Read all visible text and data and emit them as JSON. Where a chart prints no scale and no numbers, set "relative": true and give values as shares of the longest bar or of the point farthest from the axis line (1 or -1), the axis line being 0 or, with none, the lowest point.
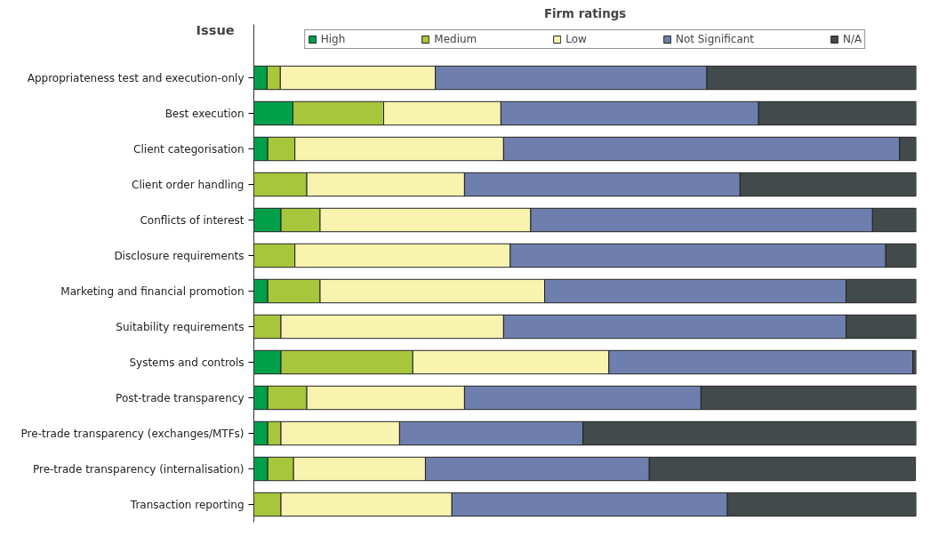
{
  "chart_data": {
    "type": "bar",
    "orientation": "horizontal",
    "stacked": true,
    "relative": true,
    "title": "Firm ratings",
    "ylabel": "Issue",
    "legend": "top",
    "grid": false,
    "categories": [
      "Appropriateness test and execution-only",
      "Best execution",
      "Client categorisation",
      "Client order handling",
      "Conflicts of interest",
      "Disclosure requirements",
      "Marketing and financial promotion",
      "Suitability requirements",
      "Systems and controls",
      "Post-trade transparency",
      "Pre-trade transparency (exchanges/MTFs)",
      "Pre-trade transparency (internalisation)",
      "Transaction reporting"
    ],
    "series": [
      {
        "name": "High",
        "color": "#00a04b",
        "values": [
          0.02,
          0.059,
          0.021,
          0,
          0.041,
          0,
          0.021,
          0,
          0.041,
          0.021,
          0.021,
          0.021,
          0
        ]
      },
      {
        "name": "Medium",
        "color": "#a8c63c",
        "values": [
          0.02,
          0.137,
          0.041,
          0.08,
          0.059,
          0.062,
          0.079,
          0.041,
          0.199,
          0.059,
          0.02,
          0.039,
          0.041
        ]
      },
      {
        "name": "Low",
        "color": "#f8f4b0",
        "values": [
          0.234,
          0.177,
          0.315,
          0.238,
          0.318,
          0.325,
          0.339,
          0.336,
          0.296,
          0.238,
          0.179,
          0.199,
          0.258
        ]
      },
      {
        "name": "Not Significant",
        "color": "#6e7fad",
        "values": [
          0.41,
          0.389,
          0.598,
          0.416,
          0.516,
          0.567,
          0.455,
          0.517,
          0.459,
          0.357,
          0.277,
          0.338,
          0.416
        ]
      },
      {
        "name": "N/A",
        "color": "#424a4b",
        "values": [
          0.316,
          0.238,
          0.025,
          0.266,
          0.066,
          0.046,
          0.106,
          0.106,
          0.005,
          0.325,
          0.503,
          0.402,
          0.285
        ]
      }
    ]
  }
}
